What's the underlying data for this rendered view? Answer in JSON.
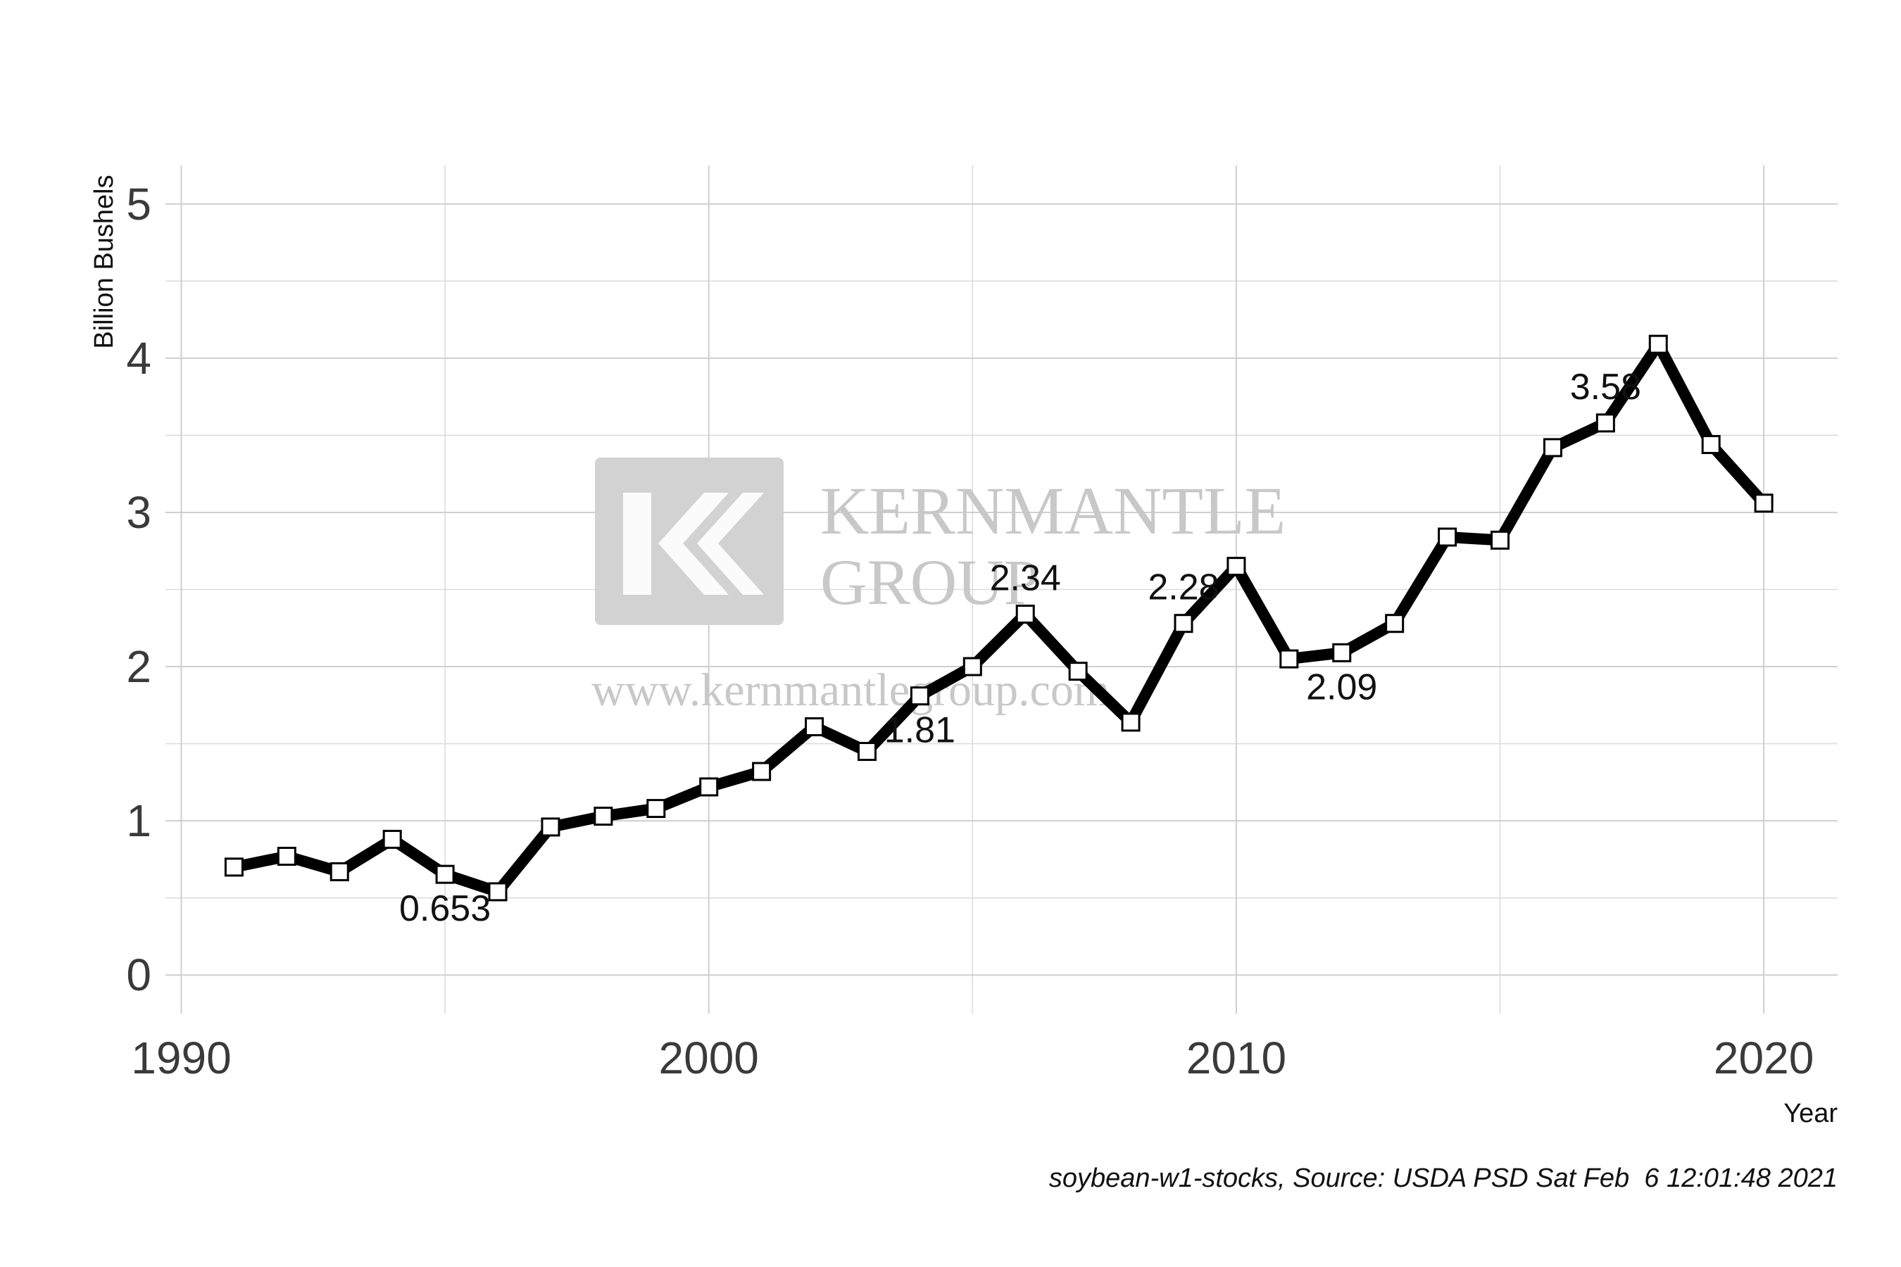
{
  "chart_data": {
    "type": "line",
    "title": "",
    "xlabel": "Year",
    "ylabel": "Billion Bushels",
    "xlim": [
      1989.7,
      2021.4
    ],
    "ylim": [
      -0.25,
      5.25
    ],
    "x_ticks": [
      1990,
      2000,
      2010,
      2020
    ],
    "y_ticks": [
      0,
      1,
      2,
      3,
      4,
      5
    ],
    "grid": true,
    "legend": "none",
    "series": [
      {
        "x": [
          1991,
          1992,
          1993,
          1994,
          1995,
          1996,
          1997,
          1998,
          1999,
          2000,
          2001,
          2002,
          2003,
          2004,
          2005,
          2006,
          2007,
          2008,
          2009,
          2010,
          2011,
          2012,
          2013,
          2014,
          2015,
          2016,
          2017,
          2018,
          2019,
          2020
        ],
        "values": [
          0.7,
          0.77,
          0.67,
          0.88,
          0.653,
          0.54,
          0.96,
          1.03,
          1.08,
          1.22,
          1.32,
          1.61,
          1.45,
          1.81,
          2.0,
          2.34,
          1.97,
          1.64,
          2.28,
          2.65,
          2.05,
          2.09,
          2.28,
          2.84,
          2.82,
          3.42,
          3.58,
          4.09,
          3.44,
          3.06
        ],
        "color": "#000000"
      }
    ],
    "annotations": [
      {
        "x": 1995,
        "text": "0.653",
        "pos": "below"
      },
      {
        "x": 2004,
        "text": "1.81",
        "pos": "below"
      },
      {
        "x": 2006,
        "text": "2.34",
        "pos": "above"
      },
      {
        "x": 2009,
        "text": "2.28",
        "pos": "above"
      },
      {
        "x": 2012,
        "text": "2.09",
        "pos": "below"
      },
      {
        "x": 2017,
        "text": "3.58",
        "pos": "above"
      }
    ],
    "caption": "soybean-w1-stocks, Source: USDA PSD Sat Feb  6 12:01:48 2021"
  },
  "watermark": {
    "line1": "KERNMANTLE",
    "line2": "GROUP",
    "url": "www.kernmantlegroup.com"
  }
}
